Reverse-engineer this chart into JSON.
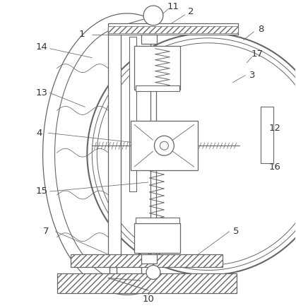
{
  "bg_color": "#ffffff",
  "lc": "#666666",
  "label_color": "#333333",
  "figsize": [
    4.19,
    4.36
  ],
  "dpi": 100
}
